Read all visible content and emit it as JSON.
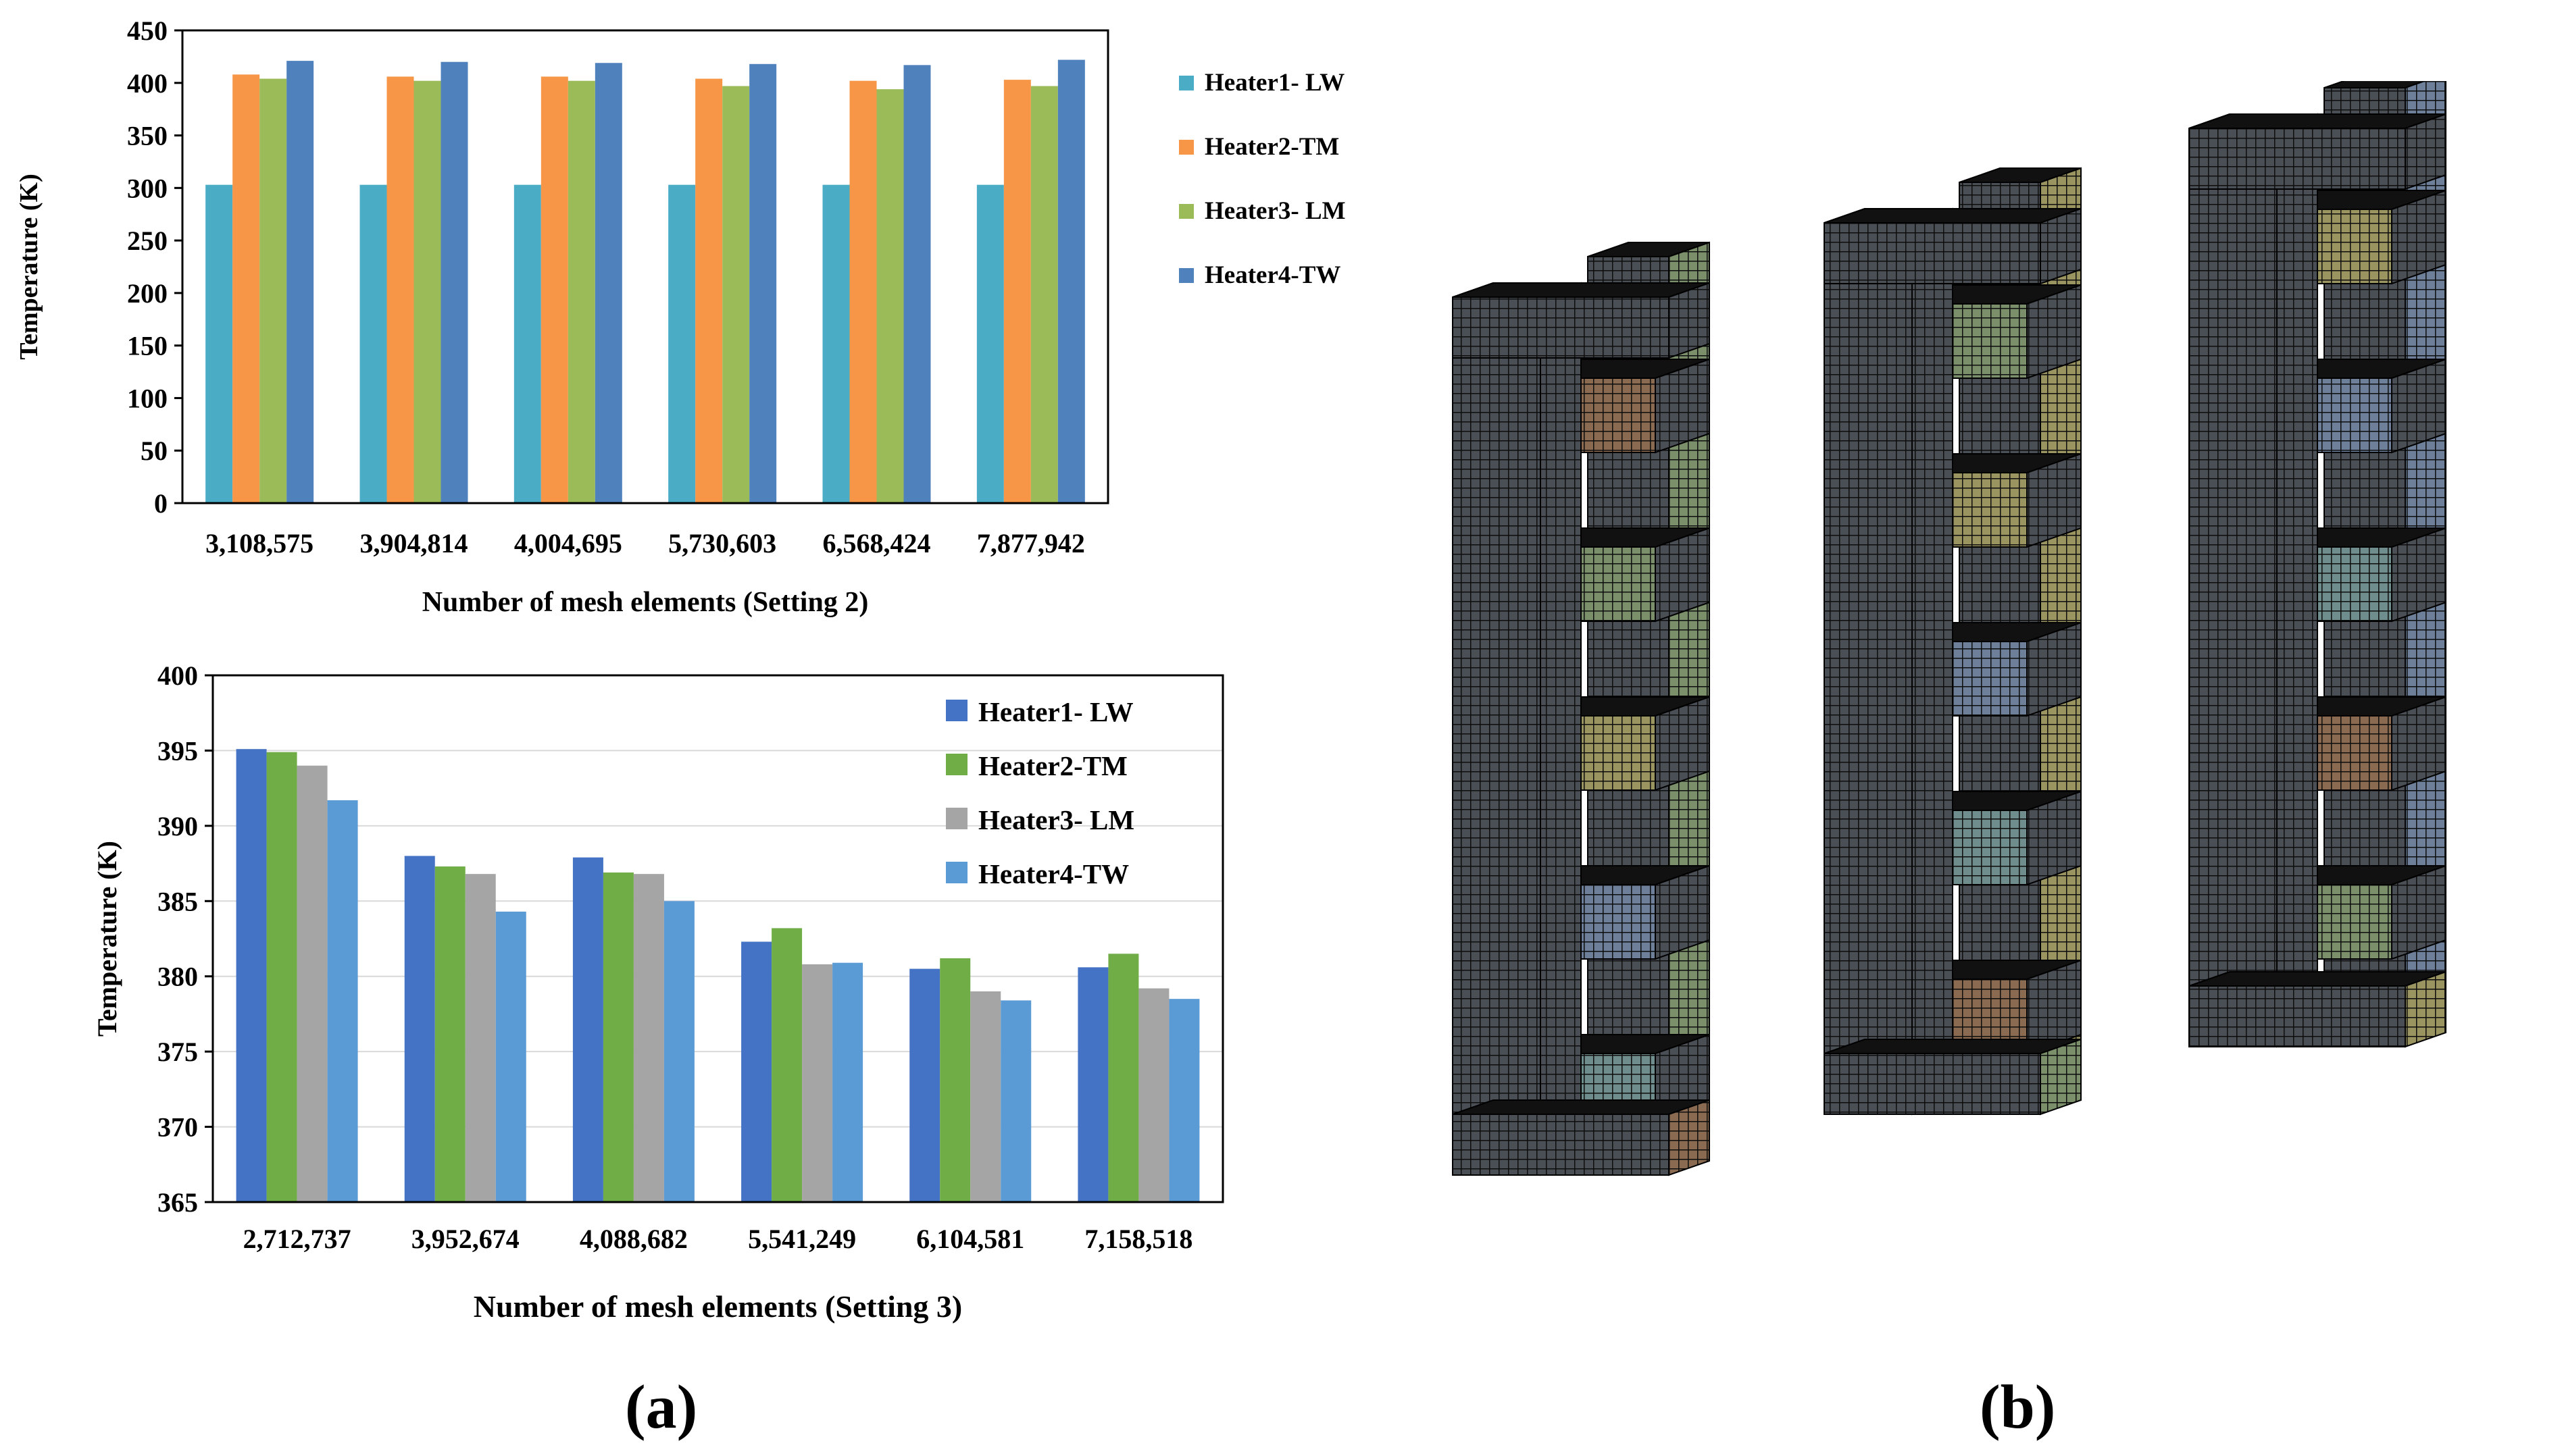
{
  "chart_data": [
    {
      "type": "bar",
      "title": "",
      "xlabel": "Number of mesh elements (Setting 2)",
      "ylabel": "Temperature (K)",
      "ylim": [
        0,
        450
      ],
      "yticks": [
        0,
        50,
        100,
        150,
        200,
        250,
        300,
        350,
        400,
        450
      ],
      "categories": [
        "3,108,575",
        "3,904,814",
        "4,004,695",
        "5,730,603",
        "6,568,424",
        "7,877,942"
      ],
      "legend_position": "right-outside",
      "series": [
        {
          "name": "Heater1- LW",
          "color": "#4bacc6",
          "values": [
            303,
            303,
            303,
            303,
            303,
            303
          ]
        },
        {
          "name": "Heater2-TM",
          "color": "#f79646",
          "values": [
            408,
            406,
            406,
            404,
            402,
            403
          ]
        },
        {
          "name": "Heater3- LM",
          "color": "#9bbb59",
          "values": [
            404,
            402,
            402,
            397,
            394,
            397
          ]
        },
        {
          "name": "Heater4-TW",
          "color": "#4f81bd",
          "values": [
            421,
            420,
            419,
            418,
            417,
            422
          ]
        }
      ]
    },
    {
      "type": "bar",
      "title": "",
      "xlabel": "Number of mesh elements (Setting 3)",
      "ylabel": "Temperature (K)",
      "ylim": [
        365,
        400
      ],
      "yticks": [
        365,
        370,
        375,
        380,
        385,
        390,
        395,
        400
      ],
      "grid": true,
      "categories": [
        "2,712,737",
        "3,952,674",
        "4,088,682",
        "5,541,249",
        "6,104,581",
        "7,158,518"
      ],
      "legend_position": "top-right-inside",
      "series": [
        {
          "name": "Heater1- LW",
          "color": "#4472c4",
          "values": [
            395.1,
            388.0,
            387.9,
            382.3,
            380.5,
            380.6
          ]
        },
        {
          "name": "Heater2-TM",
          "color": "#70ad47",
          "values": [
            394.9,
            387.3,
            386.9,
            383.2,
            381.2,
            381.5
          ]
        },
        {
          "name": "Heater3- LM",
          "color": "#a5a5a5",
          "values": [
            394.0,
            386.8,
            386.8,
            380.8,
            379.0,
            379.2
          ]
        },
        {
          "name": "Heater4-TW",
          "color": "#5b9bd5",
          "values": [
            391.7,
            384.3,
            385.0,
            380.9,
            378.4,
            378.5
          ]
        }
      ]
    }
  ],
  "panels": {
    "a": "(a)",
    "b": "(b)"
  },
  "mesh_figure": {
    "colors": {
      "dark": "#4a4e55",
      "grid": "#0d0d0d",
      "orange": "#8a6a50",
      "green": "#7a8f6a",
      "yellow": "#9a9460",
      "blue": "#6d7f99",
      "teal": "#6f8d8c"
    }
  }
}
